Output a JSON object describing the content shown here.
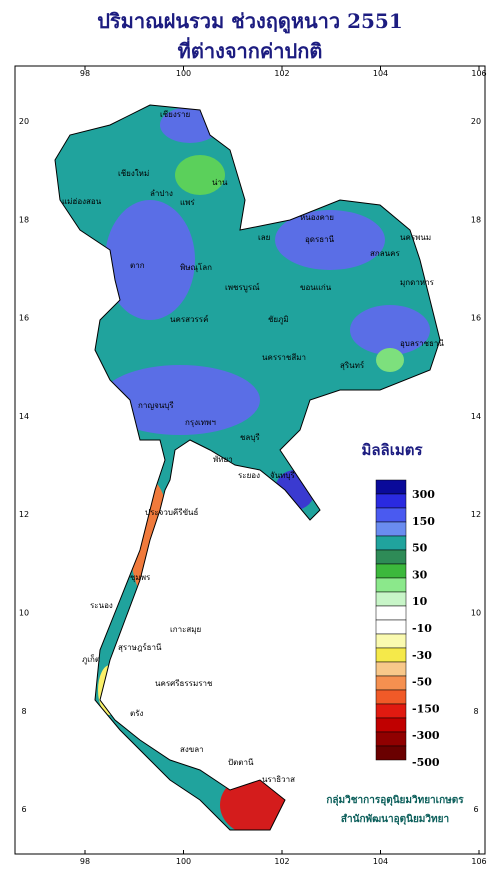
{
  "title": [
    "ปริมาณฝนรวม ช่วงฤดูหนาว 2551",
    "ที่ต่างจากค่าปกติ"
  ],
  "axes": {
    "x_labels": [
      "98",
      "100",
      "102",
      "104",
      "106"
    ],
    "y_labels": [
      "20",
      "18",
      "16",
      "14",
      "12",
      "10",
      "8",
      "6"
    ]
  },
  "legend": {
    "title": "มิลลิเมตร",
    "labels": [
      "300",
      "150",
      "50",
      "30",
      "10",
      "-10",
      "-30",
      "-50",
      "-150",
      "-300",
      "-500"
    ]
  },
  "places": [
    "เชียงราย",
    "เชียงใหม่",
    "น่าน",
    "ลำปาง",
    "แพร่",
    "แม่ฮ่องสอน",
    "หนองคาย",
    "อุดรธานี",
    "นครพนม",
    "สกลนคร",
    "เลย",
    "ตาก",
    "พิษณุโลก",
    "เพชรบูรณ์",
    "ขอนแก่น",
    "มุกดาหาร",
    "นครสวรรค์",
    "ชัยภูมิ",
    "อุบลราชธานี",
    "นครราชสีมา",
    "สุรินทร์",
    "กาญจนบุรี",
    "กรุงเทพฯ",
    "ชลบุรี",
    "พัทยา",
    "ระยอง",
    "จันทบุรี",
    "ประจวบคีรีขันธ์",
    "ชุมพร",
    "ระนอง",
    "เกาะสมุย",
    "สุราษฎร์ธานี",
    "ภูเก็ต",
    "นครศรีธรรมราช",
    "ตรัง",
    "สงขลา",
    "ปัตตานี",
    "นราธิวาส"
  ],
  "footer": [
    "กลุ่มวิชาการอุตุนิยมวิทยาเกษตร",
    "สำนักพัฒนาอุตุนิยมวิทยา"
  ]
}
